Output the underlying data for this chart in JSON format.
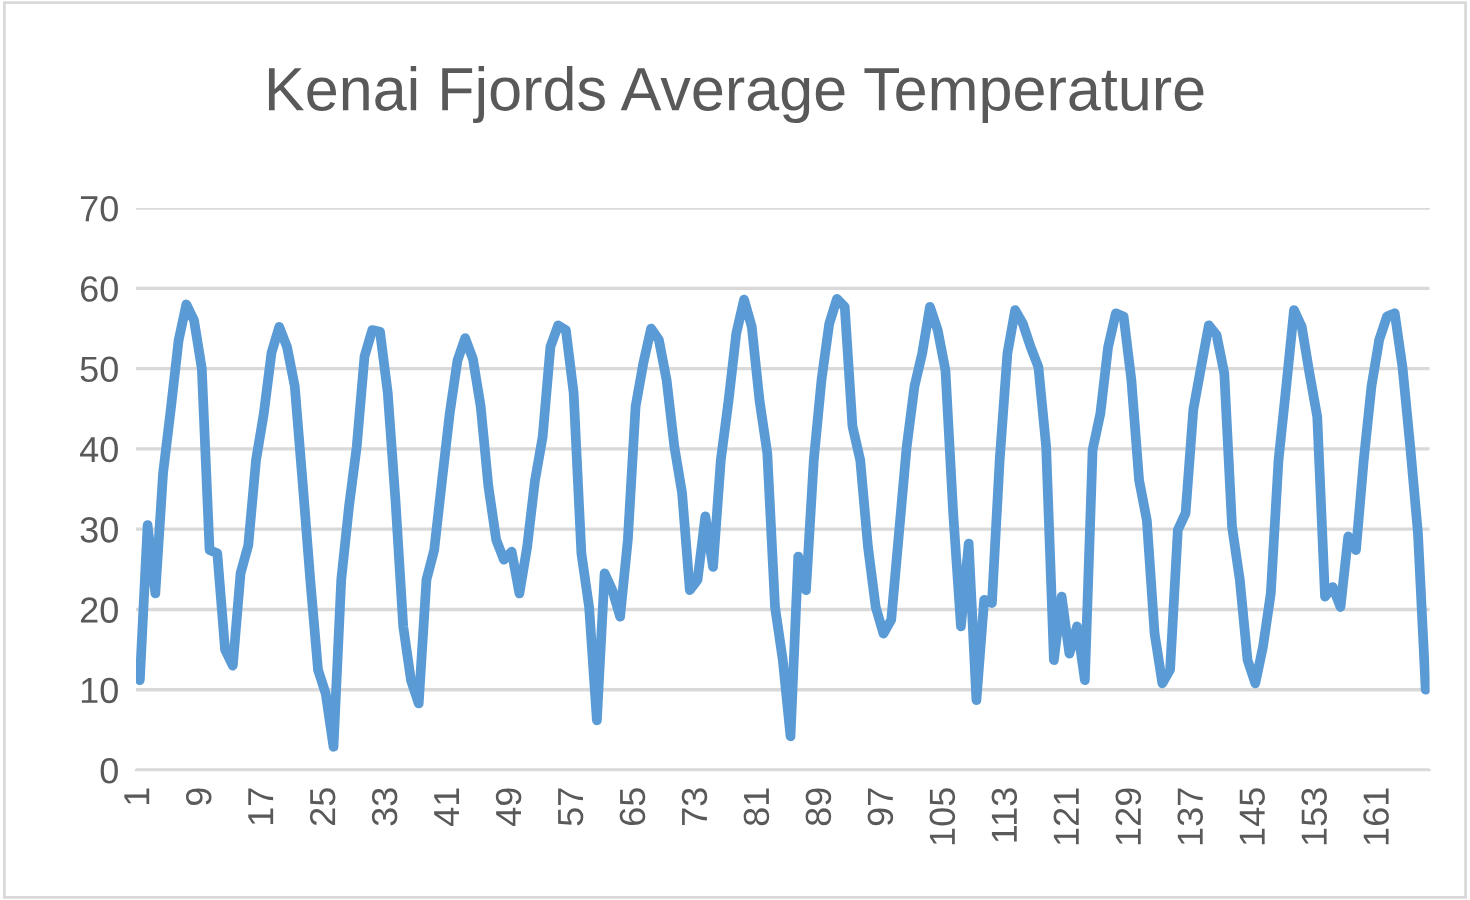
{
  "chart_data": {
    "type": "line",
    "title": "Kenai Fjords Average Temperature",
    "categories": [
      "1",
      null,
      null,
      null,
      null,
      null,
      null,
      null,
      "9",
      null,
      null,
      null,
      null,
      null,
      null,
      null,
      "17",
      null,
      null,
      null,
      null,
      null,
      null,
      null,
      "25",
      null,
      null,
      null,
      null,
      null,
      null,
      null,
      "33",
      null,
      null,
      null,
      null,
      null,
      null,
      null,
      "41",
      null,
      null,
      null,
      null,
      null,
      null,
      null,
      "49",
      null,
      null,
      null,
      null,
      null,
      null,
      null,
      "57",
      null,
      null,
      null,
      null,
      null,
      null,
      null,
      "65",
      null,
      null,
      null,
      null,
      null,
      null,
      null,
      "73",
      null,
      null,
      null,
      null,
      null,
      null,
      null,
      "81",
      null,
      null,
      null,
      null,
      null,
      null,
      null,
      "89",
      null,
      null,
      null,
      null,
      null,
      null,
      null,
      "97",
      null,
      null,
      null,
      null,
      null,
      null,
      null,
      "105",
      null,
      null,
      null,
      null,
      null,
      null,
      null,
      "113",
      null,
      null,
      null,
      null,
      null,
      null,
      null,
      "121",
      null,
      null,
      null,
      null,
      null,
      null,
      null,
      "129",
      null,
      null,
      null,
      null,
      null,
      null,
      null,
      "137",
      null,
      null,
      null,
      null,
      null,
      null,
      null,
      "145",
      null,
      null,
      null,
      null,
      null,
      null,
      null,
      "153",
      null,
      null,
      null,
      null,
      null,
      null,
      null,
      "161",
      null,
      null,
      null,
      null,
      null,
      null
    ],
    "series": [
      {
        "color": "#5b9bd5",
        "values": [
          11.2,
          30.5,
          22,
          37,
          45,
          53.5,
          58,
          56,
          50,
          27.4,
          27,
          15,
          13,
          24.5,
          28,
          38.6,
          44.4,
          52,
          55.2,
          52.7,
          47.8,
          36,
          23.7,
          12.5,
          9.5,
          2.9,
          23.7,
          32.8,
          40.3,
          51.5,
          54.8,
          54.6,
          47,
          33.6,
          17.9,
          11.2,
          8.3,
          23.7,
          27.4,
          36,
          44.4,
          51,
          53.8,
          51.2,
          45.3,
          35.3,
          28.7,
          26.2,
          27.2,
          22,
          27.8,
          36,
          41.5,
          52.7,
          55.4,
          54.8,
          47,
          27,
          20.3,
          6.2,
          24.5,
          22.4,
          19.1,
          28.7,
          45.3,
          50.7,
          55,
          53.6,
          48.6,
          40.3,
          34.5,
          22.4,
          23.7,
          31.6,
          25.3,
          38.6,
          46,
          54.4,
          58.6,
          55.2,
          46,
          39.5,
          20.3,
          13.7,
          4.2,
          26.6,
          22.4,
          38.6,
          48.6,
          55.6,
          58.7,
          57.7,
          42.8,
          38.6,
          27.8,
          20.3,
          17,
          18.7,
          29.5,
          40.3,
          47.8,
          51.9,
          57.7,
          54.8,
          49.8,
          32,
          17.9,
          28.2,
          8.7,
          21.2,
          20.8,
          38.6,
          51.9,
          57.3,
          55.6,
          52.7,
          50.2,
          40.3,
          13.7,
          21.6,
          14.5,
          17.9,
          11.2,
          39.9,
          44.4,
          52.7,
          56.9,
          56.5,
          48.6,
          36.1,
          31.1,
          17,
          10.8,
          12.5,
          29.9,
          32,
          44.9,
          50.2,
          55.4,
          54.2,
          49.4,
          30.3,
          23.7,
          13.7,
          10.8,
          15.4,
          22,
          38.6,
          47.8,
          57.3,
          55.2,
          49.4,
          44,
          21.6,
          22.8,
          20.3,
          29.1,
          27.4,
          38.6,
          47.8,
          53.6,
          56.5,
          56.9,
          50.2,
          40.3,
          29.5,
          10
        ]
      }
    ],
    "ylim": [
      0,
      70
    ],
    "yticks": [
      0,
      10,
      20,
      30,
      40,
      50,
      60,
      70
    ],
    "grid": "y",
    "legend": false,
    "marker": "none",
    "line_style": "solid"
  }
}
